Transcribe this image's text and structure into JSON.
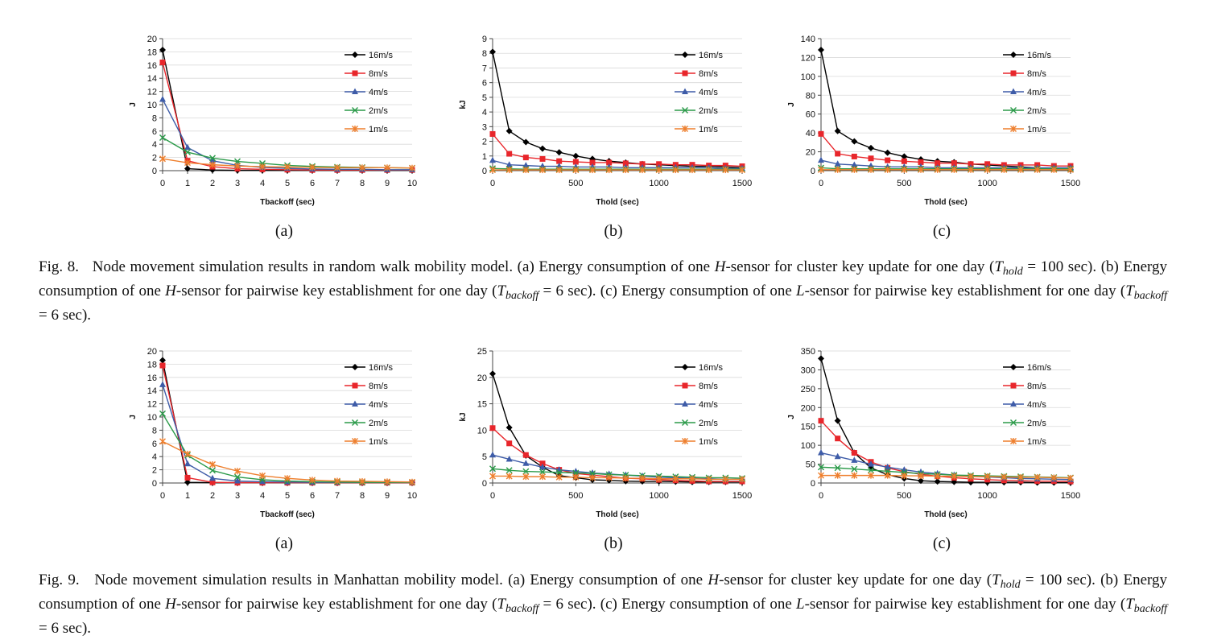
{
  "colors": {
    "16m/s": "#000000",
    "8m/s": "#e8262b",
    "4m/s": "#3e5ca8",
    "2m/s": "#2b9a49",
    "1m/s": "#ee7f2d"
  },
  "subfig_labels": [
    "(a)",
    "(b)",
    "(c)"
  ],
  "captions": {
    "fig8": {
      "prefix": "Fig. 8.",
      "lead": "Node movement simulation results in random walk mobility model. (a) Energy consumption of one ",
      "sensor_h": "H",
      "sensor_l": "L",
      "s1": "-sensor for cluster key update for one day",
      "hold_var": "T",
      "hold_sub": "hold",
      "hold_val": " = 100 sec). (b) Energy consumption of one ",
      "s2": "-sensor for pairwise key establishment for one day (",
      "backoff_sub": "backoff",
      "backoff_val": " = 6 sec). (c) Energy consumption of one",
      "s3": "-sensor for pairwise key establishment for one day (",
      "end": " = 6 sec)."
    },
    "fig9": {
      "prefix": "Fig. 9.",
      "lead": "Node movement simulation results in Manhattan mobility model. (a) Energy consumption of one ",
      "sensor_h": "H",
      "sensor_l": "L",
      "s1": "-sensor for cluster key update for one day",
      "hold_var": "T",
      "hold_sub": "hold",
      "hold_val": " = 100 sec). (b) Energy consumption of one ",
      "s2": "-sensor for pairwise key establishment for one day (",
      "backoff_sub": "backoff",
      "backoff_val": " = 6 sec). (c) Energy consumption of one",
      "s3": "-sensor for pairwise key establishment for one day (",
      "end": " = 6 sec)."
    }
  },
  "chart_data": [
    {
      "id": "f8a",
      "type": "line",
      "xlabel": "Tbackoff (sec)",
      "ylabel": "J",
      "xlim": [
        0,
        10
      ],
      "ylim": [
        0,
        20
      ],
      "xticks": [
        0,
        1,
        2,
        3,
        4,
        5,
        6,
        7,
        8,
        9,
        10
      ],
      "yticks": [
        0,
        2,
        4,
        6,
        8,
        10,
        12,
        14,
        16,
        18,
        20
      ],
      "x": [
        0,
        1,
        2,
        3,
        4,
        5,
        6,
        7,
        8,
        9,
        10
      ],
      "series": [
        {
          "name": "16m/s",
          "marker": "diamond",
          "values": [
            18.3,
            0.3,
            0.1,
            0.05,
            0.05,
            0.05,
            0.05,
            0.05,
            0.05,
            0.05,
            0.05
          ]
        },
        {
          "name": "8m/s",
          "marker": "square",
          "values": [
            16.4,
            1.5,
            0.6,
            0.3,
            0.2,
            0.15,
            0.1,
            0.1,
            0.1,
            0.1,
            0.1
          ]
        },
        {
          "name": "4m/s",
          "marker": "triangle",
          "values": [
            10.8,
            3.5,
            1.5,
            0.8,
            0.5,
            0.35,
            0.25,
            0.2,
            0.2,
            0.15,
            0.15
          ]
        },
        {
          "name": "2m/s",
          "marker": "x",
          "values": [
            5.0,
            2.8,
            1.9,
            1.4,
            1.1,
            0.8,
            0.65,
            0.55,
            0.5,
            0.45,
            0.4
          ]
        },
        {
          "name": "1m/s",
          "marker": "star",
          "values": [
            1.8,
            1.2,
            0.9,
            0.7,
            0.6,
            0.55,
            0.5,
            0.45,
            0.45,
            0.45,
            0.4
          ]
        }
      ]
    },
    {
      "id": "f8b",
      "type": "line",
      "xlabel": "Thold (sec)",
      "ylabel": "kJ",
      "xlim": [
        0,
        1500
      ],
      "ylim": [
        0,
        9
      ],
      "xticks": [
        0,
        500,
        1000,
        1500
      ],
      "yticks": [
        0,
        1,
        2,
        3,
        4,
        5,
        6,
        7,
        8,
        9
      ],
      "x": [
        0,
        100,
        200,
        300,
        400,
        500,
        600,
        700,
        800,
        900,
        1000,
        1100,
        1200,
        1300,
        1400,
        1500
      ],
      "series": [
        {
          "name": "16m/s",
          "marker": "diamond",
          "values": [
            8.1,
            2.7,
            1.95,
            1.5,
            1.25,
            1.0,
            0.8,
            0.65,
            0.55,
            0.45,
            0.4,
            0.35,
            0.3,
            0.3,
            0.25,
            0.2
          ]
        },
        {
          "name": "8m/s",
          "marker": "square",
          "values": [
            2.5,
            1.15,
            0.9,
            0.8,
            0.65,
            0.6,
            0.55,
            0.55,
            0.5,
            0.45,
            0.45,
            0.4,
            0.4,
            0.35,
            0.35,
            0.3
          ]
        },
        {
          "name": "4m/s",
          "marker": "triangle",
          "values": [
            0.7,
            0.4,
            0.35,
            0.3,
            0.3,
            0.25,
            0.25,
            0.25,
            0.2,
            0.2,
            0.2,
            0.2,
            0.2,
            0.2,
            0.15,
            0.15
          ]
        },
        {
          "name": "2m/s",
          "marker": "x",
          "values": [
            0.15,
            0.12,
            0.1,
            0.1,
            0.1,
            0.1,
            0.1,
            0.1,
            0.1,
            0.1,
            0.1,
            0.1,
            0.1,
            0.1,
            0.1,
            0.1
          ]
        },
        {
          "name": "1m/s",
          "marker": "star",
          "values": [
            0.05,
            0.05,
            0.05,
            0.05,
            0.05,
            0.05,
            0.05,
            0.05,
            0.05,
            0.05,
            0.05,
            0.05,
            0.05,
            0.05,
            0.05,
            0.05
          ]
        }
      ]
    },
    {
      "id": "f8c",
      "type": "line",
      "xlabel": "Thold (sec)",
      "ylabel": "J",
      "xlim": [
        0,
        1500
      ],
      "ylim": [
        0,
        140
      ],
      "xticks": [
        0,
        500,
        1000,
        1500
      ],
      "yticks": [
        0,
        20,
        40,
        60,
        80,
        100,
        120,
        140
      ],
      "x": [
        0,
        100,
        200,
        300,
        400,
        500,
        600,
        700,
        800,
        900,
        1000,
        1100,
        1200,
        1300,
        1400,
        1500
      ],
      "series": [
        {
          "name": "16m/s",
          "marker": "diamond",
          "values": [
            128,
            42,
            31,
            24,
            19,
            15,
            12,
            10,
            9,
            7,
            6,
            5,
            4,
            3,
            2,
            1
          ]
        },
        {
          "name": "8m/s",
          "marker": "square",
          "values": [
            39,
            18,
            15,
            13,
            11,
            10,
            9,
            8,
            8,
            7,
            7,
            6,
            6,
            6,
            5,
            5
          ]
        },
        {
          "name": "4m/s",
          "marker": "triangle",
          "values": [
            11,
            7,
            6,
            5,
            4,
            4,
            4,
            3,
            3,
            3,
            3,
            3,
            3,
            3,
            3,
            3
          ]
        },
        {
          "name": "2m/s",
          "marker": "x",
          "values": [
            3,
            2,
            2,
            2,
            2,
            2,
            2,
            2,
            2,
            2,
            2,
            2,
            2,
            2,
            2,
            2
          ]
        },
        {
          "name": "1m/s",
          "marker": "star",
          "values": [
            1,
            1,
            1,
            1,
            1,
            1,
            1,
            1,
            1,
            1,
            1,
            1,
            1,
            1,
            1,
            1
          ]
        }
      ]
    },
    {
      "id": "f9a",
      "type": "line",
      "xlabel": "Tbackoff (sec)",
      "ylabel": "J",
      "xlim": [
        0,
        10
      ],
      "ylim": [
        0,
        20
      ],
      "xticks": [
        0,
        1,
        2,
        3,
        4,
        5,
        6,
        7,
        8,
        9,
        10
      ],
      "yticks": [
        0,
        2,
        4,
        6,
        8,
        10,
        12,
        14,
        16,
        18,
        20
      ],
      "x": [
        0,
        1,
        2,
        3,
        4,
        5,
        6,
        7,
        8,
        9,
        10
      ],
      "series": [
        {
          "name": "16m/s",
          "marker": "diamond",
          "values": [
            18.6,
            0.1,
            0.05,
            0.05,
            0.05,
            0.05,
            0.05,
            0.05,
            0.05,
            0.05,
            0.05
          ]
        },
        {
          "name": "8m/s",
          "marker": "square",
          "values": [
            17.8,
            0.8,
            0.1,
            0.05,
            0.05,
            0.05,
            0.05,
            0.05,
            0.05,
            0.05,
            0.05
          ]
        },
        {
          "name": "4m/s",
          "marker": "triangle",
          "values": [
            14.9,
            2.9,
            0.7,
            0.3,
            0.2,
            0.15,
            0.1,
            0.1,
            0.1,
            0.1,
            0.1
          ]
        },
        {
          "name": "2m/s",
          "marker": "x",
          "values": [
            10.5,
            4.2,
            1.9,
            0.9,
            0.5,
            0.3,
            0.2,
            0.15,
            0.1,
            0.1,
            0.1
          ]
        },
        {
          "name": "1m/s",
          "marker": "star",
          "values": [
            6.3,
            4.4,
            2.8,
            1.8,
            1.1,
            0.7,
            0.45,
            0.3,
            0.25,
            0.2,
            0.15
          ]
        }
      ]
    },
    {
      "id": "f9b",
      "type": "line",
      "xlabel": "Thold (sec)",
      "ylabel": "kJ",
      "xlim": [
        0,
        1500
      ],
      "ylim": [
        0,
        25
      ],
      "xticks": [
        0,
        500,
        1000,
        1500
      ],
      "yticks": [
        0,
        5,
        10,
        15,
        20,
        25
      ],
      "x": [
        0,
        100,
        200,
        300,
        400,
        500,
        600,
        700,
        800,
        900,
        1000,
        1100,
        1200,
        1300,
        1400,
        1500
      ],
      "series": [
        {
          "name": "16m/s",
          "marker": "diamond",
          "values": [
            20.7,
            10.5,
            5.2,
            3.0,
            1.4,
            1.0,
            0.6,
            0.5,
            0.35,
            0.3,
            0.3,
            0.25,
            0.2,
            0.2,
            0.2,
            0.2
          ]
        },
        {
          "name": "8m/s",
          "marker": "square",
          "values": [
            10.4,
            7.5,
            5.3,
            3.7,
            2.5,
            1.8,
            1.5,
            1.2,
            0.9,
            0.8,
            0.6,
            0.5,
            0.4,
            0.3,
            0.3,
            0.3
          ]
        },
        {
          "name": "4m/s",
          "marker": "triangle",
          "values": [
            5.3,
            4.5,
            3.7,
            3.0,
            2.5,
            2.2,
            1.9,
            1.7,
            1.5,
            1.3,
            1.1,
            1.0,
            0.9,
            0.8,
            0.7,
            0.7
          ]
        },
        {
          "name": "2m/s",
          "marker": "x",
          "values": [
            2.7,
            2.4,
            2.2,
            2.1,
            2.0,
            1.9,
            1.8,
            1.6,
            1.5,
            1.4,
            1.3,
            1.2,
            1.1,
            1.0,
            1.0,
            0.9
          ]
        },
        {
          "name": "1m/s",
          "marker": "star",
          "values": [
            1.3,
            1.3,
            1.2,
            1.2,
            1.1,
            1.1,
            1.0,
            1.0,
            0.9,
            0.9,
            0.8,
            0.8,
            0.8,
            0.7,
            0.7,
            0.7
          ]
        }
      ]
    },
    {
      "id": "f9c",
      "type": "line",
      "xlabel": "Thold (sec)",
      "ylabel": "J",
      "xlim": [
        0,
        1500
      ],
      "ylim": [
        0,
        350
      ],
      "xticks": [
        0,
        500,
        1000,
        1500
      ],
      "yticks": [
        0,
        50,
        100,
        150,
        200,
        250,
        300,
        350
      ],
      "x": [
        0,
        100,
        200,
        300,
        400,
        500,
        600,
        700,
        800,
        900,
        1000,
        1100,
        1200,
        1300,
        1400,
        1500
      ],
      "series": [
        {
          "name": "16m/s",
          "marker": "diamond",
          "values": [
            330,
            165,
            80,
            40,
            22,
            12,
            6,
            4,
            3,
            2,
            2,
            2,
            2,
            1,
            1,
            1
          ]
        },
        {
          "name": "8m/s",
          "marker": "square",
          "values": [
            165,
            118,
            80,
            56,
            40,
            30,
            23,
            18,
            14,
            11,
            9,
            7,
            6,
            5,
            5,
            4
          ]
        },
        {
          "name": "4m/s",
          "marker": "triangle",
          "values": [
            80,
            70,
            60,
            50,
            42,
            35,
            29,
            25,
            21,
            18,
            16,
            14,
            12,
            11,
            10,
            9
          ]
        },
        {
          "name": "2m/s",
          "marker": "x",
          "values": [
            42,
            40,
            37,
            34,
            31,
            28,
            25,
            23,
            21,
            20,
            19,
            18,
            17,
            16,
            15,
            14
          ]
        },
        {
          "name": "1m/s",
          "marker": "star",
          "values": [
            20,
            20,
            20,
            20,
            20,
            19,
            19,
            18,
            18,
            17,
            17,
            16,
            15,
            15,
            14,
            13
          ]
        }
      ]
    }
  ]
}
